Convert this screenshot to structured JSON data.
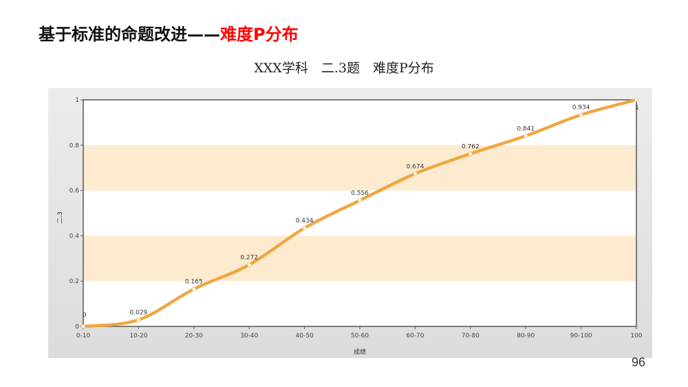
{
  "slide": {
    "title_main": "基于标准的命题改进——",
    "title_accent": "难度P分布",
    "page_number": "96"
  },
  "colors": {
    "accent_red": "#ff0000",
    "line": "#f0a640",
    "band": "#fdebd0",
    "panel_bg": "#e3e3e3"
  },
  "chart_data": {
    "type": "line",
    "title": "XXX学科　二.3题　难度P分布",
    "xlabel": "成绩",
    "ylabel": "二.3",
    "categories": [
      "0-10",
      "10-20",
      "20-30",
      "30-40",
      "40-50",
      "50-60",
      "60-70",
      "70-80",
      "80-90",
      "90-100",
      "100"
    ],
    "series": [
      {
        "values": [
          0,
          0.029,
          0.165,
          0.272,
          0.434,
          0.556,
          0.674,
          0.762,
          0.841,
          0.934,
          1
        ]
      }
    ],
    "data_labels": [
      "0",
      "0.029",
      "0.165",
      "0.272",
      "0.434",
      "0.556",
      "0.674",
      "0.762",
      "0.841",
      "0.934",
      "1"
    ],
    "ylim": [
      0,
      1
    ],
    "yticks": [
      0,
      0.2,
      0.4,
      0.6,
      0.8,
      1
    ],
    "ytick_labels": [
      "0",
      "0.2",
      "0.4",
      "0.6",
      "0.8",
      "1"
    ],
    "grid": "alternating horizontal bands",
    "legend": "none"
  }
}
